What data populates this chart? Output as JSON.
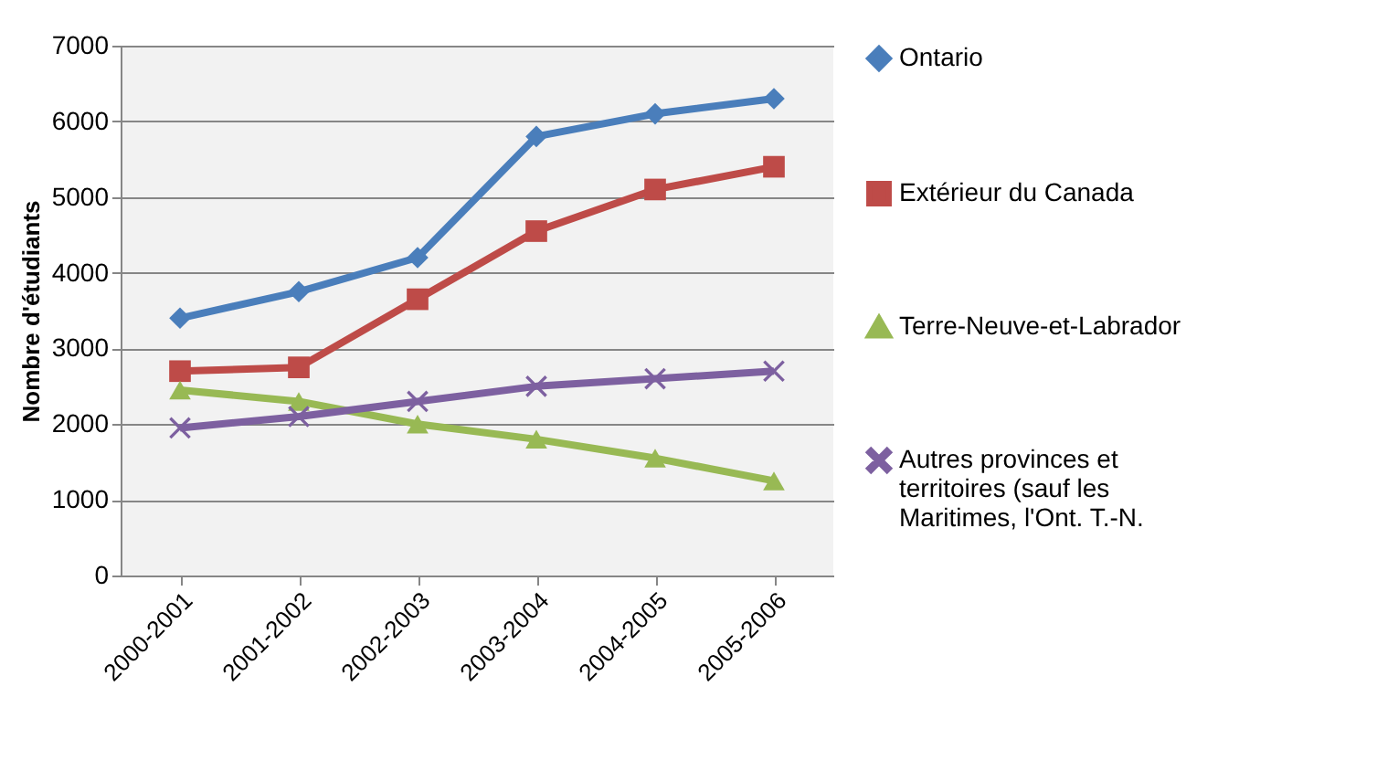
{
  "chart_data": {
    "type": "line",
    "ylabel": "Nombre d'étudiants",
    "categories": [
      "2000-2001",
      "2001-2002",
      "2002-2003",
      "2003-2004",
      "2004-2005",
      "2005-2006"
    ],
    "series": [
      {
        "name": "Ontario",
        "color": "#4a7ebb",
        "marker": "diamond",
        "values": [
          3400,
          3750,
          4200,
          5800,
          6100,
          6300
        ]
      },
      {
        "name": "Extérieur du Canada",
        "color": "#be4b48",
        "marker": "square",
        "values": [
          2700,
          2750,
          3650,
          4550,
          5100,
          5400
        ]
      },
      {
        "name": "Terre-Neuve-et-Labrador",
        "color": "#98b954",
        "marker": "triangle",
        "values": [
          2450,
          2300,
          2000,
          1800,
          1550,
          1250
        ]
      },
      {
        "name": "Autres provinces et territoires (sauf les Maritimes, l'Ont. T.-N.",
        "color": "#7d60a0",
        "marker": "cross",
        "values": [
          1950,
          2100,
          2300,
          2500,
          2600,
          2700
        ]
      }
    ],
    "ylim": [
      0,
      7000
    ],
    "yticks": [
      0,
      1000,
      2000,
      3000,
      4000,
      5000,
      6000,
      7000
    ],
    "grid": "y",
    "legend": "right",
    "line_style": "solid"
  }
}
